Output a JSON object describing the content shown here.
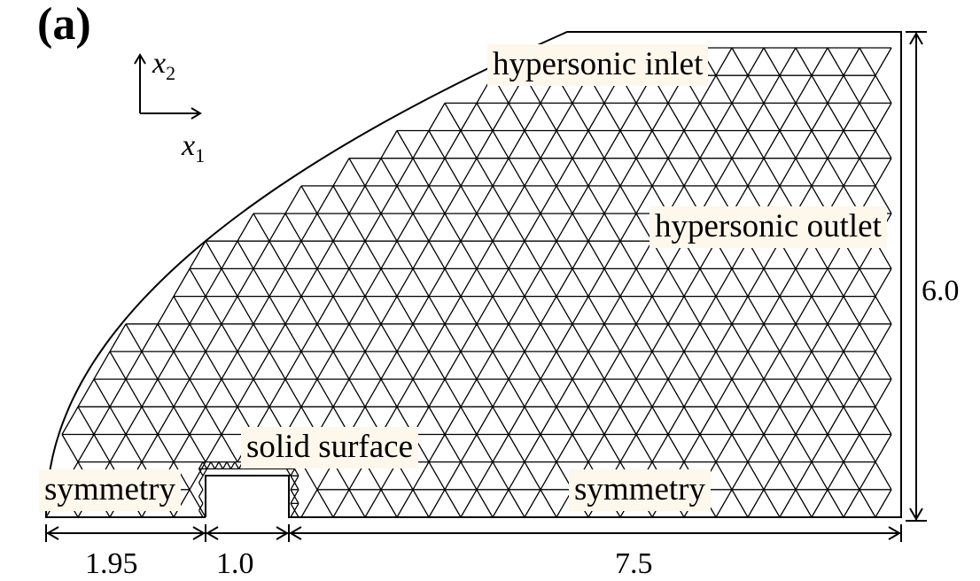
{
  "panel_label": "(a)",
  "axes": {
    "x_var": "x",
    "x_sub": "1",
    "y_var": "x",
    "y_sub": "2"
  },
  "labels": {
    "inlet": "hypersonic inlet",
    "outlet": "hypersonic outlet",
    "solid": "solid surface",
    "symmetry_left": "symmetry",
    "symmetry_right": "symmetry"
  },
  "dimensions": {
    "left": "1.95",
    "middle": "1.0",
    "right": "7.5",
    "height": "6.0"
  },
  "colors": {
    "stroke": "#000000",
    "label_bg": "#fdf7ec"
  }
}
